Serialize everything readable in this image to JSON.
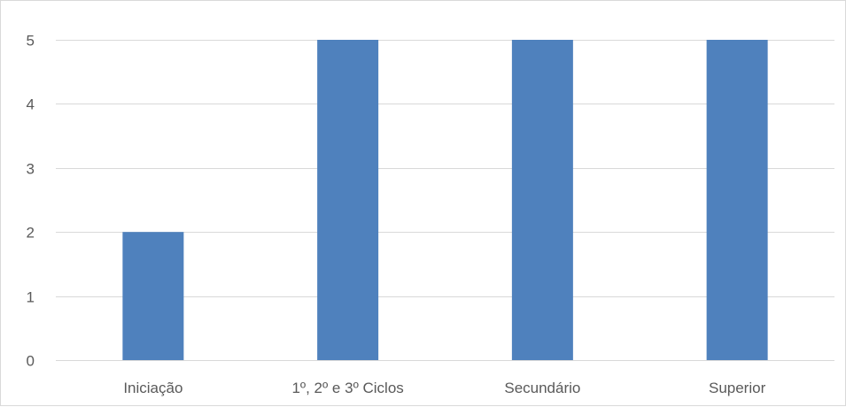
{
  "chart_data": {
    "type": "bar",
    "title": "",
    "xlabel": "",
    "ylabel": "",
    "categories": [
      "Iniciação",
      "1º, 2º e 3º Ciclos",
      "Secundário",
      "Superior"
    ],
    "values": [
      2,
      5,
      5,
      5
    ],
    "ylim": [
      0,
      5
    ],
    "yticks": [
      0,
      1,
      2,
      3,
      4,
      5
    ],
    "grid": true,
    "legend": "none",
    "colors": {
      "bar": "#4f81bd",
      "grid": "#d9d9d9",
      "text": "#595959"
    }
  }
}
